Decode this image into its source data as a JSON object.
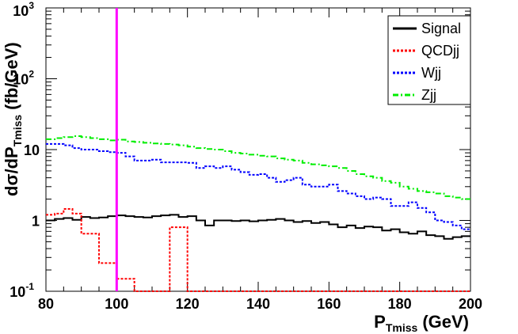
{
  "chart_data": {
    "type": "line",
    "step": true,
    "xscale": "linear",
    "yscale": "log",
    "xlim": [
      80,
      200
    ],
    "ylim": [
      0.1,
      1000
    ],
    "xlabel": {
      "main": "P",
      "sub": "Tmiss",
      "unit": "(GeV)"
    },
    "ylabel": {
      "main": "dσ/dP",
      "sub": "Tmiss",
      "unit": "(fb/GeV)"
    },
    "x_ticks": [
      "80",
      "100",
      "120",
      "140",
      "160",
      "180",
      "200"
    ],
    "y_ticks": [
      {
        "base": "10",
        "exp": "-1"
      },
      {
        "base": "1",
        "exp": ""
      },
      {
        "base": "10",
        "exp": ""
      },
      {
        "base": "10",
        "exp": "2"
      },
      {
        "base": "10",
        "exp": "3"
      }
    ],
    "cut_line": {
      "x": 100,
      "color": "#ff00ff"
    },
    "bin_edges": [
      80,
      82.5,
      85,
      87.5,
      90,
      92.5,
      95,
      97.5,
      100,
      102.5,
      105,
      107.5,
      110,
      112.5,
      115,
      117.5,
      120,
      122.5,
      125,
      127.5,
      130,
      132.5,
      135,
      137.5,
      140,
      142.5,
      145,
      147.5,
      150,
      152.5,
      155,
      157.5,
      160,
      162.5,
      165,
      167.5,
      170,
      172.5,
      175,
      177.5,
      180,
      182.5,
      185,
      187.5,
      190,
      192.5,
      195,
      197.5,
      200
    ],
    "legend_position": "top-right",
    "series": [
      {
        "name": "Signal",
        "color": "#000000",
        "dash": "solid",
        "values": [
          1.0,
          1.05,
          1.08,
          1.02,
          1.12,
          1.08,
          1.1,
          1.15,
          1.18,
          1.15,
          1.12,
          1.1,
          1.15,
          1.18,
          1.2,
          1.12,
          1.15,
          1.0,
          0.85,
          1.0,
          1.0,
          0.98,
          1.0,
          0.97,
          1.0,
          1.02,
          1.05,
          1.0,
          0.95,
          0.98,
          0.92,
          0.95,
          0.88,
          0.8,
          0.85,
          0.78,
          0.82,
          0.8,
          0.72,
          0.75,
          0.68,
          0.65,
          0.7,
          0.62,
          0.6,
          0.55,
          0.58,
          0.6
        ]
      },
      {
        "name": "QCDjj",
        "color": "#ff0000",
        "dash": "dotted",
        "values": [
          1.2,
          1.25,
          1.45,
          1.25,
          0.65,
          0.65,
          0.25,
          0.25,
          0.15,
          0.15,
          0.08,
          0.08,
          0.08,
          0.08,
          0.8,
          0.8,
          0.08,
          0.08,
          0.08,
          0.08,
          0.08,
          0.08,
          0.08,
          0.08,
          0.08,
          0.08,
          0.08,
          0.08,
          0.08,
          0.08,
          0.08,
          0.08,
          0.08,
          0.08,
          0.08,
          0.08,
          0.08,
          0.08,
          0.08,
          0.08,
          0.08,
          0.08,
          0.08,
          0.08,
          0.08,
          0.08,
          0.08,
          0.08
        ]
      },
      {
        "name": "Wjj",
        "color": "#0000ff",
        "dash": "dotted",
        "values": [
          12,
          12,
          11.5,
          10.5,
          10,
          10,
          9.5,
          9.2,
          9,
          8,
          7,
          7,
          7.2,
          6.6,
          6.6,
          6.6,
          6.5,
          5.5,
          5.8,
          5.5,
          5.8,
          5.2,
          4.8,
          4.4,
          4.5,
          4.0,
          3.5,
          3.7,
          4.0,
          3.2,
          3.0,
          3.0,
          3.2,
          2.6,
          2.4,
          2.2,
          2.0,
          2.1,
          2.0,
          1.6,
          1.6,
          1.8,
          1.5,
          1.3,
          1.0,
          0.95,
          0.85,
          0.75
        ]
      },
      {
        "name": "Zjj",
        "color": "#00ee00",
        "dash": "dashdot",
        "values": [
          14,
          14.5,
          15,
          15.5,
          15,
          14.5,
          14,
          13.5,
          13.8,
          13,
          12.8,
          12.5,
          12.2,
          12,
          11.8,
          11.5,
          11,
          10.5,
          10.2,
          10,
          9.5,
          9,
          8.8,
          8.5,
          8.2,
          8,
          7.5,
          7.2,
          7.0,
          6.5,
          6.2,
          6.0,
          5.8,
          5.5,
          5.0,
          4.5,
          4.2,
          4.0,
          3.6,
          3.4,
          3.0,
          2.8,
          2.6,
          2.5,
          2.4,
          2.2,
          2.1,
          2.0
        ]
      }
    ]
  }
}
